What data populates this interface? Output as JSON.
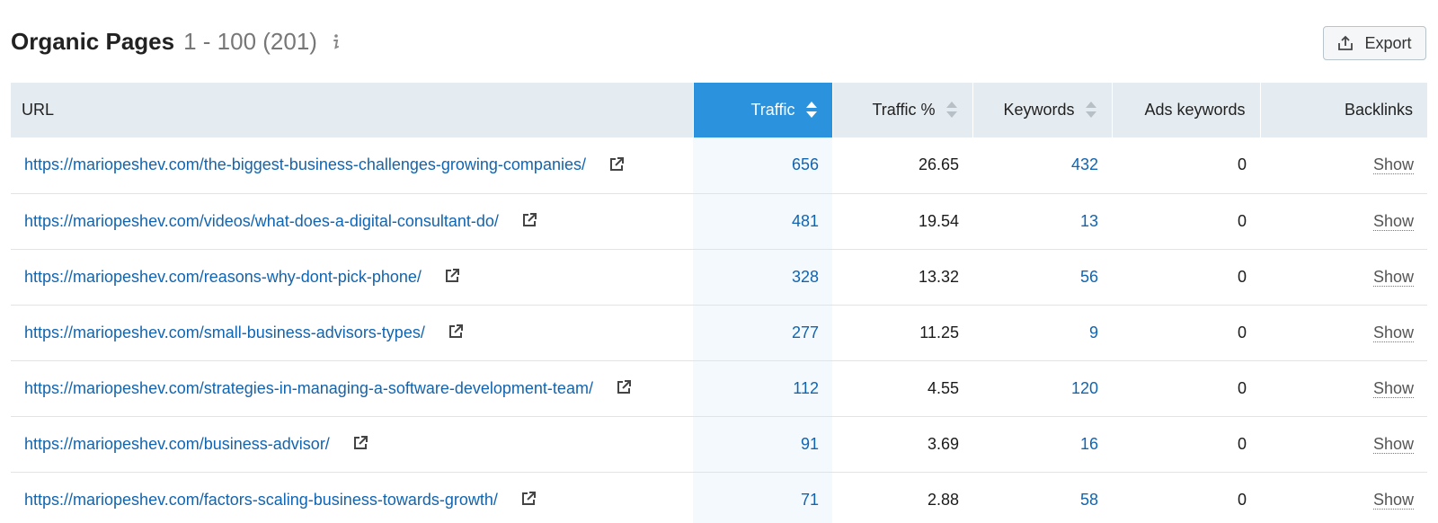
{
  "header": {
    "title": "Organic Pages",
    "range": "1 - 100 (201)"
  },
  "export": {
    "label": "Export"
  },
  "columns": {
    "url": "URL",
    "traffic": "Traffic",
    "traffic_pct": "Traffic %",
    "keywords": "Keywords",
    "ads_keywords": "Ads keywords",
    "backlinks": "Backlinks"
  },
  "rows": [
    {
      "url": "https://mariopeshev.com/the-biggest-business-challenges-growing-companies/",
      "traffic": "656",
      "traffic_pct": "26.65",
      "keywords": "432",
      "ads_keywords": "0",
      "backlinks": "Show"
    },
    {
      "url": "https://mariopeshev.com/videos/what-does-a-digital-consultant-do/",
      "traffic": "481",
      "traffic_pct": "19.54",
      "keywords": "13",
      "ads_keywords": "0",
      "backlinks": "Show"
    },
    {
      "url": "https://mariopeshev.com/reasons-why-dont-pick-phone/",
      "traffic": "328",
      "traffic_pct": "13.32",
      "keywords": "56",
      "ads_keywords": "0",
      "backlinks": "Show"
    },
    {
      "url": "https://mariopeshev.com/small-business-advisors-types/",
      "traffic": "277",
      "traffic_pct": "11.25",
      "keywords": "9",
      "ads_keywords": "0",
      "backlinks": "Show"
    },
    {
      "url": "https://mariopeshev.com/strategies-in-managing-a-software-development-team/",
      "traffic": "112",
      "traffic_pct": "4.55",
      "keywords": "120",
      "ads_keywords": "0",
      "backlinks": "Show"
    },
    {
      "url": "https://mariopeshev.com/business-advisor/",
      "traffic": "91",
      "traffic_pct": "3.69",
      "keywords": "16",
      "ads_keywords": "0",
      "backlinks": "Show"
    },
    {
      "url": "https://mariopeshev.com/factors-scaling-business-towards-growth/",
      "traffic": "71",
      "traffic_pct": "2.88",
      "keywords": "58",
      "ads_keywords": "0",
      "backlinks": "Show"
    }
  ],
  "colors": {
    "accent": "#2b93dd",
    "link": "#1164b0",
    "header_bg": "#e5ecf1"
  }
}
